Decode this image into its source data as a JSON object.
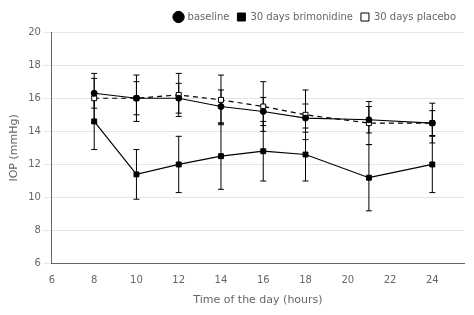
{
  "chart_data": {
    "type": "line",
    "x": [
      8,
      10,
      12,
      14,
      16,
      18,
      21,
      24
    ],
    "series": [
      {
        "name": "baseline",
        "color": "#000000",
        "marker": "circle",
        "line_style": "solid",
        "values": [
          16.3,
          16.0,
          16.0,
          15.5,
          15.2,
          14.8,
          14.7,
          14.5
        ],
        "errors": [
          0.9,
          1.0,
          0.9,
          1.0,
          0.85,
          0.85,
          0.8,
          0.75
        ]
      },
      {
        "name": "30 days brimonidine",
        "color": "#000000",
        "marker": "square",
        "line_style": "solid",
        "values": [
          14.6,
          11.4,
          12.0,
          12.5,
          12.8,
          12.6,
          11.2,
          12.0
        ],
        "errors": [
          1.7,
          1.5,
          1.7,
          2.0,
          1.8,
          1.6,
          2.0,
          1.7
        ]
      },
      {
        "name": "30 days placebo",
        "color": "#000000",
        "marker": "open_square",
        "line_style": "dashed",
        "values": [
          16.0,
          16.0,
          16.2,
          15.9,
          15.5,
          15.0,
          14.5,
          14.5
        ],
        "errors": [
          1.5,
          1.4,
          1.3,
          1.5,
          1.5,
          1.5,
          1.3,
          1.2
        ]
      }
    ],
    "xlabel": "Time of the day (hours)",
    "ylabel": "IOP (mmHg)",
    "xlim": [
      6,
      25.5
    ],
    "ylim": [
      6,
      20
    ],
    "xticks": [
      6,
      8,
      10,
      12,
      14,
      16,
      18,
      20,
      22,
      24
    ],
    "yticks": [
      6,
      8,
      10,
      12,
      14,
      16,
      18,
      20
    ],
    "grid": "y",
    "legend": "upper right"
  }
}
